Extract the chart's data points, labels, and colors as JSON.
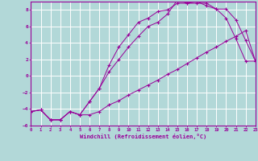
{
  "xlabel": "Windchill (Refroidissement éolien,°C)",
  "background_color": "#b2d8d8",
  "grid_color": "#ffffff",
  "line_color": "#990099",
  "xlim": [
    0,
    23
  ],
  "ylim": [
    -6,
    9
  ],
  "xticks": [
    0,
    1,
    2,
    3,
    4,
    5,
    6,
    7,
    8,
    9,
    10,
    11,
    12,
    13,
    14,
    15,
    16,
    17,
    18,
    19,
    20,
    21,
    22,
    23
  ],
  "yticks": [
    -6,
    -4,
    -2,
    0,
    2,
    4,
    6,
    8
  ],
  "curve1_x": [
    0,
    1,
    2,
    3,
    4,
    5,
    6,
    7,
    8,
    9,
    10,
    11,
    12,
    13,
    14,
    15,
    16,
    17,
    18,
    19,
    20,
    21,
    22,
    23
  ],
  "curve1_y": [
    -4.3,
    -4.1,
    -5.3,
    -5.3,
    -4.3,
    -4.7,
    -4.7,
    -4.3,
    -3.5,
    -3.0,
    -2.3,
    -1.7,
    -1.1,
    -0.5,
    0.2,
    0.8,
    1.5,
    2.2,
    2.9,
    3.5,
    4.2,
    4.8,
    5.5,
    1.8
  ],
  "curve2_x": [
    0,
    1,
    2,
    3,
    4,
    5,
    6,
    7,
    8,
    9,
    10,
    11,
    12,
    13,
    14,
    15,
    16,
    17,
    18,
    19,
    20,
    21,
    22,
    23
  ],
  "curve2_y": [
    -4.3,
    -4.1,
    -5.3,
    -5.3,
    -4.3,
    -4.7,
    -3.1,
    -1.5,
    0.5,
    2.0,
    3.5,
    4.8,
    6.0,
    6.5,
    7.5,
    9.2,
    8.8,
    8.8,
    8.8,
    8.1,
    8.1,
    6.8,
    4.3,
    1.8
  ],
  "curve3_x": [
    0,
    1,
    2,
    3,
    4,
    5,
    6,
    7,
    8,
    9,
    10,
    11,
    12,
    13,
    14,
    15,
    16,
    17,
    18,
    19,
    20,
    21,
    22,
    23
  ],
  "curve3_y": [
    -4.3,
    -4.1,
    -5.3,
    -5.3,
    -4.3,
    -4.7,
    -3.1,
    -1.5,
    1.3,
    3.5,
    5.0,
    6.5,
    7.0,
    7.8,
    8.0,
    8.8,
    8.8,
    9.0,
    8.5,
    8.1,
    7.0,
    4.5,
    1.8,
    1.8
  ]
}
